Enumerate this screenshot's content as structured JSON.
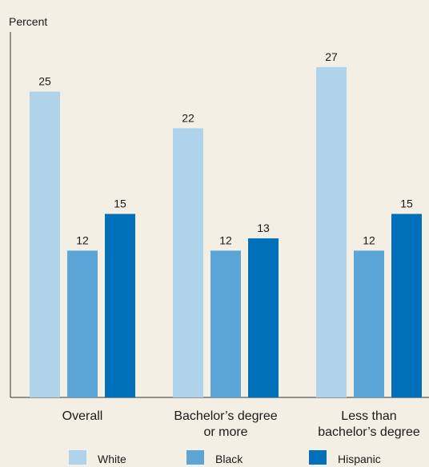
{
  "chart_data": {
    "type": "bar",
    "ylabel": "Percent",
    "categories": [
      [
        "Overall"
      ],
      [
        "Bachelor’s degree",
        "or more"
      ],
      [
        "Less than",
        "bachelor’s degree"
      ]
    ],
    "series": [
      {
        "name": "White",
        "color": "#aed3eb",
        "values": [
          25,
          22,
          27
        ]
      },
      {
        "name": "Black",
        "color": "#5ba6d6",
        "values": [
          12,
          12,
          12
        ]
      },
      {
        "name": "Hispanic",
        "color": "#0070bb",
        "values": [
          15,
          13,
          15
        ]
      }
    ],
    "ylim": [
      0,
      32
    ],
    "grid": false,
    "legend": "bottom"
  }
}
